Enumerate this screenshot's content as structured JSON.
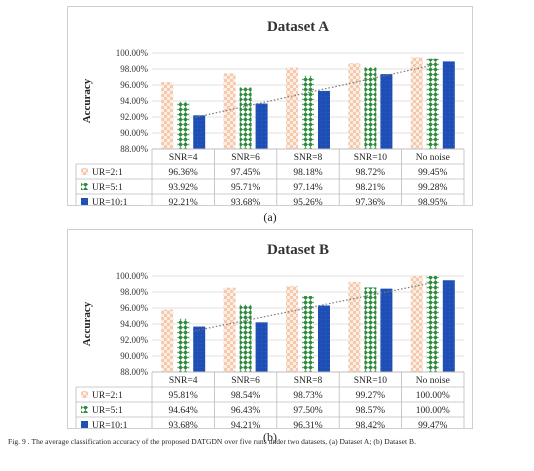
{
  "charts": [
    {
      "chart_data": {
        "type": "bar",
        "title": "Dataset A",
        "ylabel": "Accuracy",
        "categories": [
          "SNR=4",
          "SNR=6",
          "SNR=8",
          "SNR=10",
          "No noise"
        ],
        "ylim": [
          88.0,
          100.0
        ],
        "yticks": [
          "88.00%",
          "90.00%",
          "92.00%",
          "94.00%",
          "96.00%",
          "98.00%",
          "100.00%"
        ],
        "trendline": "dotted linear trend of UR=10:1",
        "series": [
          {
            "name": "UR=2:1",
            "values": [
              96.36,
              97.45,
              98.18,
              98.72,
              99.45
            ],
            "labels": [
              "96.36%",
              "97.45%",
              "98.18%",
              "98.72%",
              "99.45%"
            ]
          },
          {
            "name": "UR=5:1",
            "values": [
              93.92,
              95.71,
              97.14,
              98.21,
              99.28
            ],
            "labels": [
              "93.92%",
              "95.71%",
              "97.14%",
              "98.21%",
              "99.28%"
            ]
          },
          {
            "name": "UR=10:1",
            "values": [
              92.21,
              93.68,
              95.26,
              97.36,
              98.95
            ],
            "labels": [
              "92.21%",
              "93.68%",
              "95.26%",
              "97.36%",
              "98.95%"
            ]
          }
        ]
      },
      "panel_label": "(a)"
    },
    {
      "chart_data": {
        "type": "bar",
        "title": "Dataset B",
        "ylabel": "Accuracy",
        "categories": [
          "SNR=4",
          "SNR=6",
          "SNR=8",
          "SNR=10",
          "No noise"
        ],
        "ylim": [
          88.0,
          100.0
        ],
        "yticks": [
          "88.00%",
          "90.00%",
          "92.00%",
          "94.00%",
          "96.00%",
          "98.00%",
          "100.00%"
        ],
        "trendline": "dotted linear trend of UR=10:1",
        "series": [
          {
            "name": "UR=2:1",
            "values": [
              95.81,
              98.54,
              98.73,
              99.27,
              100.0
            ],
            "labels": [
              "95.81%",
              "98.54%",
              "98.73%",
              "99.27%",
              "100.00%"
            ]
          },
          {
            "name": "UR=5:1",
            "values": [
              94.64,
              96.43,
              97.5,
              98.57,
              100.0
            ],
            "labels": [
              "94.64%",
              "96.43%",
              "97.50%",
              "98.57%",
              "100.00%"
            ]
          },
          {
            "name": "UR=10:1",
            "values": [
              93.68,
              94.21,
              96.31,
              98.42,
              99.47
            ],
            "labels": [
              "93.68%",
              "94.21%",
              "96.31%",
              "98.42%",
              "99.47%"
            ]
          }
        ]
      },
      "panel_label": "(b)"
    }
  ],
  "series_colors": [
    "#f5c9ad",
    "#2e8b3e",
    "#1f4fb4"
  ],
  "caption": "Fig. 9 . The average classification accuracy of the proposed DATGDN over five runs under two datasets, (a) Dataset A; (b) Dataset B."
}
